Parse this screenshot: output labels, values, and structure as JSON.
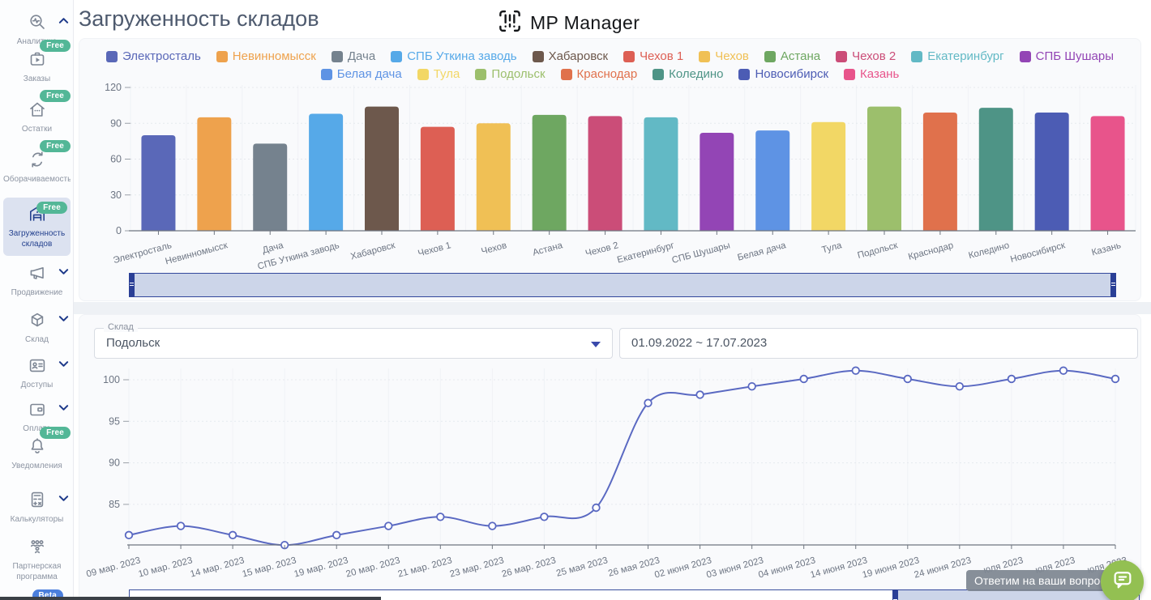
{
  "header": {
    "title": "Загруженность складов",
    "logo_text": "MP Manager"
  },
  "sidebar": {
    "items": [
      {
        "label": "Аналитика",
        "icon": "analytics-icon",
        "badge": "",
        "chevron": "up",
        "selected": false
      },
      {
        "label": "Заказы",
        "icon": "orders-icon",
        "badge": "Free",
        "chevron": "",
        "selected": false
      },
      {
        "label": "Остатки",
        "icon": "stock-icon",
        "badge": "Free",
        "chevron": "",
        "selected": false
      },
      {
        "label": "Оборачиваемость",
        "icon": "turnover-icon",
        "badge": "Free",
        "chevron": "",
        "selected": false
      },
      {
        "label": "Загруженность складов",
        "icon": "warehouse-icon",
        "badge": "Free",
        "chevron": "",
        "selected": true
      },
      {
        "label": "Продвижение",
        "icon": "promotion-icon",
        "badge": "",
        "chevron": "down",
        "selected": false
      },
      {
        "label": "Склад",
        "icon": "cube-icon",
        "badge": "",
        "chevron": "down",
        "selected": false
      },
      {
        "label": "Доступы",
        "icon": "id-card-icon",
        "badge": "",
        "chevron": "down",
        "selected": false
      },
      {
        "label": "Оплата",
        "icon": "wallet-icon",
        "badge": "",
        "chevron": "down",
        "selected": false
      },
      {
        "label": "Уведомления",
        "icon": "bell-icon",
        "badge": "Free",
        "chevron": "",
        "selected": false
      },
      {
        "label": "Калькуляторы",
        "icon": "calculator-icon",
        "badge": "",
        "chevron": "down",
        "selected": false
      },
      {
        "label": "Партнерская программа",
        "icon": "partners-icon",
        "badge": "",
        "chevron": "",
        "selected": false
      }
    ],
    "beta_badge": "Beta"
  },
  "filters": {
    "warehouse_label": "Склад",
    "warehouse_value": "Подольск",
    "date_range": "01.09.2022 ~ 17.07.2023"
  },
  "chat": {
    "tooltip": "Ответим на ваши вопросы"
  },
  "colors": {
    "accent_navy": "#2a3f96",
    "free_badge": "#53b797",
    "beta_badge": "#4b7fdd",
    "slider_fill": "#ccd5e9",
    "chat_green": "#93c052",
    "line_series": "#5a69c2"
  },
  "chart_data": [
    {
      "type": "bar",
      "title": "Загруженность складов",
      "categories": [
        "Электросталь",
        "Невинномысск",
        "Дача",
        "СПБ Уткина заводь",
        "Хабаровск",
        "Чехов 1",
        "Чехов",
        "Астана",
        "Чехов 2",
        "Екатеринбург",
        "СПБ Шушары",
        "Белая дача",
        "Тула",
        "Подольск",
        "Краснодар",
        "Коледино",
        "Новосибирск",
        "Казань"
      ],
      "values": [
        80,
        95,
        73,
        98,
        104,
        87,
        90,
        97,
        96,
        95,
        82,
        84,
        91,
        104,
        99,
        103,
        99,
        96
      ],
      "colors": [
        "#5a68b8",
        "#eea24d",
        "#75828e",
        "#56a9e8",
        "#6d584c",
        "#dd5f54",
        "#f0c055",
        "#6ea761",
        "#cb4d78",
        "#62b9c5",
        "#9345b5",
        "#5e93e4",
        "#f2d765",
        "#9cbf6c",
        "#e0714c",
        "#4e9486",
        "#4c5cb4",
        "#e8548b"
      ],
      "ylim": [
        0,
        120
      ],
      "yticks": [
        0,
        30,
        60,
        90,
        120
      ],
      "grid": true,
      "legend_position": "top"
    },
    {
      "type": "line",
      "series_name": "Подольск",
      "x": [
        "09 мар. 2023",
        "10 мар. 2023",
        "14 мар. 2023",
        "15 мар. 2023",
        "19 мар. 2023",
        "20 мар. 2023",
        "21 мар. 2023",
        "23 мар. 2023",
        "26 мар. 2023",
        "25 мая 2023",
        "26 мая 2023",
        "02 июня 2023",
        "03 июня 2023",
        "04 июня 2023",
        "14 июня 2023",
        "19 июня 2023",
        "24 июня 2023",
        "юля 2023",
        "юля 2023",
        "юля 2023"
      ],
      "values": [
        81.3,
        82.4,
        81.3,
        80.1,
        81.3,
        82.4,
        83.5,
        82.4,
        83.5,
        84.6,
        97.2,
        98.2,
        99.2,
        100.1,
        101.1,
        100.1,
        99.2,
        100.1,
        101.1,
        100.1
      ],
      "ylim": [
        80.1,
        101.5
      ],
      "yticks": [
        85,
        90,
        95,
        100
      ],
      "grid": true,
      "point_style": "open-circle",
      "color": "#5a69c2"
    }
  ]
}
